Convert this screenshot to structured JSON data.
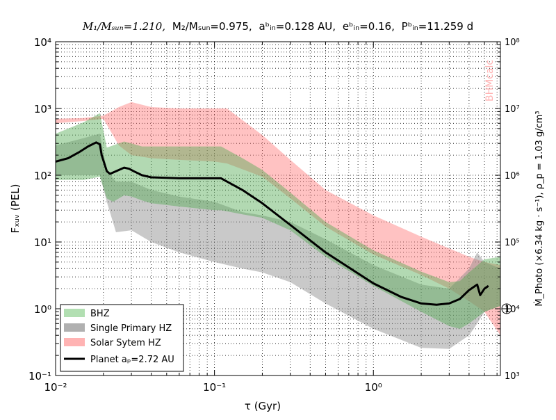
{
  "chart_data": {
    "type": "area",
    "title": "M1/MSun=1.210, M2/MSun=0.975, abin=0.128 AU, ebin=0.16, Pbin=11.259 d",
    "title_parts": {
      "m1": "M₁/Mₛᵤₙ=1.210,",
      "m2": "M₂/Mₛᵤₙ=0.975,",
      "abin": "aᵇᵢₙ=0.128 AU,",
      "ebin": "eᵇᵢₙ=0.16,",
      "pbin": "Pᵇᵢₙ=11.259 d"
    },
    "xlabel": "τ (Gyr)",
    "ylabel": "F_XUV (PEL)",
    "ylabel_display": "Fₓᵤᵥ (PEL)",
    "ylabel_right": "Ṁ_Photo (×6.34  kg · s⁻¹), ρ_p = 1.03  g/cm³",
    "xscale": "log",
    "yscale": "log",
    "xlim": [
      0.01,
      6.3
    ],
    "ylim": [
      0.1,
      10000
    ],
    "ylim_right": [
      1000,
      100000000
    ],
    "grid": true,
    "legend_position": "lower-left",
    "watermark": "BHMcalc",
    "x_ticks": [
      "10⁻²",
      "10⁻¹",
      "10⁰"
    ],
    "y_ticks": [
      "10⁻¹",
      "10⁰",
      "10¹",
      "10²",
      "10³",
      "10⁴"
    ],
    "y_ticks_right": [
      "10³",
      "10⁴",
      "10⁵",
      "10⁶",
      "10⁷",
      "10⁸"
    ],
    "colors": {
      "bhz": "#55aa55",
      "single": "#888888",
      "solar": "#ff6666",
      "planet": "#000000"
    },
    "legend": [
      {
        "label": "BHZ",
        "swatch": "#b2dfb2"
      },
      {
        "label": "Single Primary HZ",
        "swatch": "#b0b0b0"
      },
      {
        "label": "Solar Sytem HZ",
        "swatch": "#ffb3b3"
      },
      {
        "label": "Planet aₚ=2.72 AU",
        "swatch": "#000000"
      }
    ],
    "series": [
      {
        "name": "Solar Sytem HZ",
        "kind": "band",
        "x": [
          0.01,
          0.015,
          0.02,
          0.025,
          0.03,
          0.04,
          0.06,
          0.1,
          0.12,
          0.2,
          0.3,
          0.5,
          1.0,
          2.0,
          3.0,
          4.0,
          5.0,
          6.3
        ],
        "upper": [
          700,
          720,
          780,
          1050,
          1250,
          1050,
          1000,
          1000,
          1000,
          400,
          170,
          60,
          25,
          12,
          8,
          6,
          5,
          4.5
        ],
        "lower": [
          600,
          650,
          700,
          280,
          200,
          180,
          170,
          160,
          150,
          95,
          45,
          17,
          6.5,
          3.2,
          2.0,
          1.3,
          0.9,
          0.4
        ]
      },
      {
        "name": "Single Primary HZ",
        "kind": "band",
        "x": [
          0.01,
          0.015,
          0.019,
          0.021,
          0.024,
          0.03,
          0.04,
          0.06,
          0.1,
          0.15,
          0.2,
          0.3,
          0.5,
          1.0,
          2.0,
          3.0,
          4.0,
          4.5,
          5.0,
          6.3
        ],
        "upper": [
          280,
          360,
          420,
          120,
          80,
          80,
          60,
          48,
          40,
          28,
          25,
          20,
          11,
          4.5,
          2.3,
          2.0,
          4.0,
          7.0,
          5.0,
          4.0
        ],
        "lower": [
          100,
          100,
          100,
          40,
          14,
          15,
          10,
          7.0,
          5.0,
          4.0,
          3.5,
          2.5,
          1.2,
          0.5,
          0.26,
          0.25,
          0.4,
          0.6,
          0.9,
          1.1
        ]
      },
      {
        "name": "BHZ",
        "kind": "band",
        "x": [
          0.01,
          0.015,
          0.019,
          0.021,
          0.023,
          0.027,
          0.03,
          0.035,
          0.04,
          0.06,
          0.1,
          0.11,
          0.15,
          0.2,
          0.3,
          0.5,
          1.0,
          2.0,
          3.0,
          3.5,
          4.0,
          5.0,
          6.3
        ],
        "upper": [
          420,
          620,
          850,
          260,
          280,
          320,
          300,
          270,
          270,
          270,
          270,
          270,
          180,
          120,
          55,
          20,
          7.5,
          3.6,
          2.5,
          2.6,
          3.5,
          5.5,
          6.0
        ],
        "lower": [
          85,
          85,
          95,
          45,
          40,
          50,
          48,
          42,
          38,
          34,
          30,
          30,
          26,
          23,
          15,
          6.0,
          2.2,
          0.9,
          0.55,
          0.5,
          0.6,
          0.9,
          1.1
        ]
      },
      {
        "name": "Planet aₚ=2.72 AU",
        "kind": "line",
        "x": [
          0.01,
          0.012,
          0.014,
          0.016,
          0.018,
          0.019,
          0.0195,
          0.021,
          0.022,
          0.024,
          0.027,
          0.029,
          0.031,
          0.035,
          0.04,
          0.06,
          0.1,
          0.11,
          0.15,
          0.2,
          0.3,
          0.5,
          1.0,
          1.5,
          2.0,
          2.5,
          3.0,
          3.5,
          4.0,
          4.5,
          4.7,
          5.0,
          5.3
        ],
        "y": [
          160,
          180,
          220,
          270,
          310,
          290,
          200,
          115,
          105,
          115,
          130,
          125,
          115,
          100,
          93,
          90,
          90,
          90,
          60,
          38,
          18,
          7.0,
          2.4,
          1.5,
          1.2,
          1.15,
          1.2,
          1.4,
          1.9,
          2.3,
          1.6,
          2.0,
          2.2
        ]
      }
    ],
    "markers": [
      {
        "name": "earth-symbol",
        "x": 5.0,
        "y": 1.0
      }
    ]
  }
}
